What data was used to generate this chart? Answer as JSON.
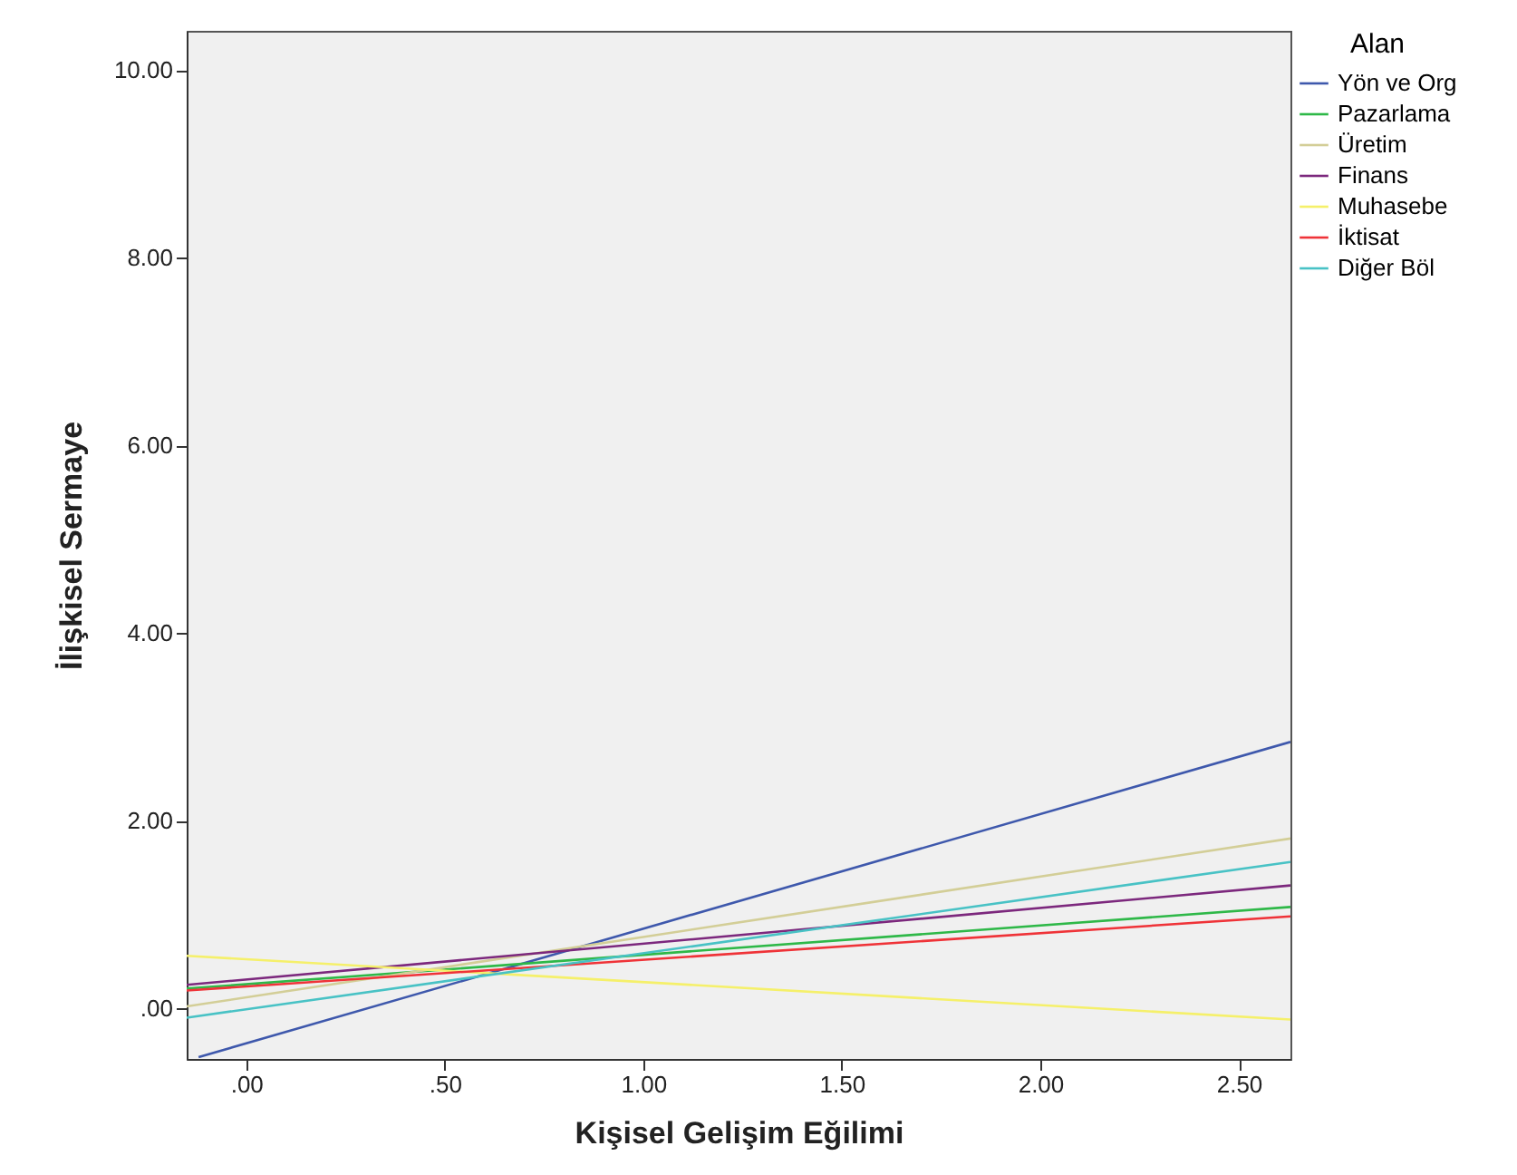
{
  "chart_data": {
    "type": "line",
    "xlabel": "Kişisel Gelişim Eğilimi",
    "ylabel": "İlişkisel Sermaye",
    "legend_title": "Alan",
    "legend": "right",
    "grid": false,
    "marker": "none",
    "line_style": "solid",
    "xlim": [
      -0.15,
      2.63
    ],
    "ylim": [
      -0.54,
      10.42
    ],
    "xticks": [
      {
        "value": 0,
        "label": ".00"
      },
      {
        "value": 0.5,
        "label": ".50"
      },
      {
        "value": 1,
        "label": "1.00"
      },
      {
        "value": 1.5,
        "label": "1.50"
      },
      {
        "value": 2,
        "label": "2.00"
      },
      {
        "value": 2.5,
        "label": "2.50"
      }
    ],
    "yticks": [
      {
        "value": 0,
        "label": ".00"
      },
      {
        "value": 2,
        "label": "2.00"
      },
      {
        "value": 4,
        "label": "4.00"
      },
      {
        "value": 6,
        "label": "6.00"
      },
      {
        "value": 8,
        "label": "8.00"
      },
      {
        "value": 10,
        "label": "10.00"
      }
    ],
    "series": [
      {
        "name": "Yön ve Org",
        "color": "#3e58ac",
        "x": [
          -0.12,
          2.63
        ],
        "values": [
          -0.52,
          2.84
        ]
      },
      {
        "name": "Pazarlama",
        "color": "#2eb848",
        "x": [
          -0.15,
          2.63
        ],
        "values": [
          0.21,
          1.08
        ]
      },
      {
        "name": "Üretim",
        "color": "#d3ce97",
        "x": [
          -0.15,
          2.63
        ],
        "values": [
          0.02,
          1.81
        ]
      },
      {
        "name": "Finans",
        "color": "#7c287d",
        "x": [
          -0.15,
          2.63
        ],
        "values": [
          0.25,
          1.31
        ]
      },
      {
        "name": "Muhasebe",
        "color": "#f5f06a",
        "x": [
          -0.15,
          2.63
        ],
        "values": [
          0.56,
          -0.12
        ]
      },
      {
        "name": "İktisat",
        "color": "#ef3338",
        "x": [
          -0.15,
          2.63
        ],
        "values": [
          0.19,
          0.98
        ]
      },
      {
        "name": "Diğer Böl",
        "color": "#48c2c5",
        "x": [
          -0.15,
          2.63
        ],
        "values": [
          -0.1,
          1.56
        ]
      }
    ]
  }
}
